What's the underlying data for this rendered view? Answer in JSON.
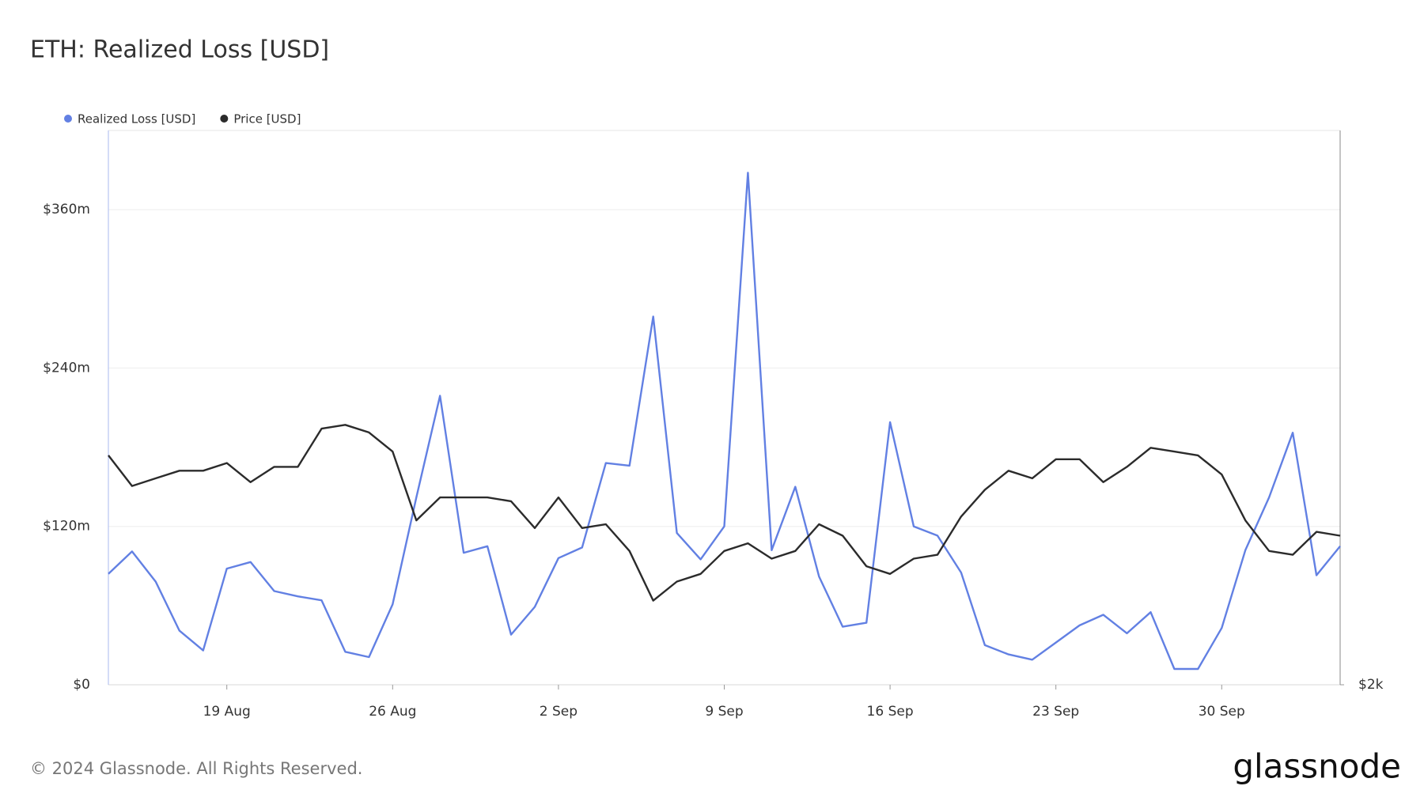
{
  "chart_data": {
    "type": "line",
    "title": "ETH: Realized Loss [USD]",
    "footer": "© 2024 Glassnode. All Rights Reserved.",
    "brand": "glassnode",
    "categories": [
      "14 Aug",
      "15 Aug",
      "16 Aug",
      "17 Aug",
      "18 Aug",
      "19 Aug",
      "20 Aug",
      "21 Aug",
      "22 Aug",
      "23 Aug",
      "24 Aug",
      "25 Aug",
      "26 Aug",
      "27 Aug",
      "28 Aug",
      "29 Aug",
      "30 Aug",
      "31 Aug",
      "1 Sep",
      "2 Sep",
      "3 Sep",
      "4 Sep",
      "5 Sep",
      "6 Sep",
      "7 Sep",
      "8 Sep",
      "9 Sep",
      "10 Sep",
      "11 Sep",
      "12 Sep",
      "13 Sep",
      "14 Sep",
      "15 Sep",
      "16 Sep",
      "17 Sep",
      "18 Sep",
      "19 Sep",
      "20 Sep",
      "21 Sep",
      "22 Sep",
      "23 Sep",
      "24 Sep",
      "25 Sep",
      "26 Sep",
      "27 Sep",
      "28 Sep",
      "29 Sep",
      "30 Sep",
      "1 Oct",
      "2 Oct",
      "3 Oct",
      "4 Oct",
      "5 Oct"
    ],
    "xtick_labels": [
      "19 Aug",
      "26 Aug",
      "2 Sep",
      "9 Sep",
      "16 Sep",
      "23 Sep",
      "30 Sep"
    ],
    "series": [
      {
        "name": "Realized Loss [USD]",
        "color": "#6280e3",
        "axis": "y",
        "values": [
          84,
          101,
          78,
          41,
          26,
          88,
          93,
          71,
          67,
          64,
          25,
          21,
          61,
          142,
          219,
          100,
          105,
          38,
          59,
          96,
          104,
          168,
          166,
          279,
          115,
          95,
          120,
          388,
          102,
          150,
          82,
          44,
          47,
          199,
          120,
          113,
          85,
          30,
          23,
          19,
          32,
          45,
          53,
          39,
          55,
          12,
          12,
          43,
          102,
          142,
          191,
          83,
          105
        ]
      },
      {
        "name": "Price [USD]",
        "color": "#2b2b2b",
        "axis": "y2",
        "values": [
          2600,
          2520,
          2540,
          2560,
          2560,
          2580,
          2530,
          2570,
          2570,
          2670,
          2680,
          2660,
          2610,
          2430,
          2490,
          2490,
          2490,
          2480,
          2410,
          2490,
          2410,
          2420,
          2350,
          2220,
          2270,
          2290,
          2350,
          2370,
          2330,
          2350,
          2420,
          2390,
          2310,
          2290,
          2330,
          2340,
          2440,
          2510,
          2560,
          2540,
          2590,
          2590,
          2530,
          2570,
          2620,
          2610,
          2600,
          2550,
          2430,
          2350,
          2340,
          2400,
          2390
        ]
      }
    ],
    "ylim": [
      0,
      420
    ],
    "yticks": [
      {
        "value": 0,
        "label": "$0"
      },
      {
        "value": 120,
        "label": "$120m"
      },
      {
        "value": 240,
        "label": "$240m"
      },
      {
        "value": 360,
        "label": "$360m"
      }
    ],
    "y2lim": [
      2000,
      3450
    ],
    "y2ticks": [
      {
        "value": 2000,
        "label": "$2k"
      }
    ],
    "grid": true,
    "legend": "top-left"
  }
}
